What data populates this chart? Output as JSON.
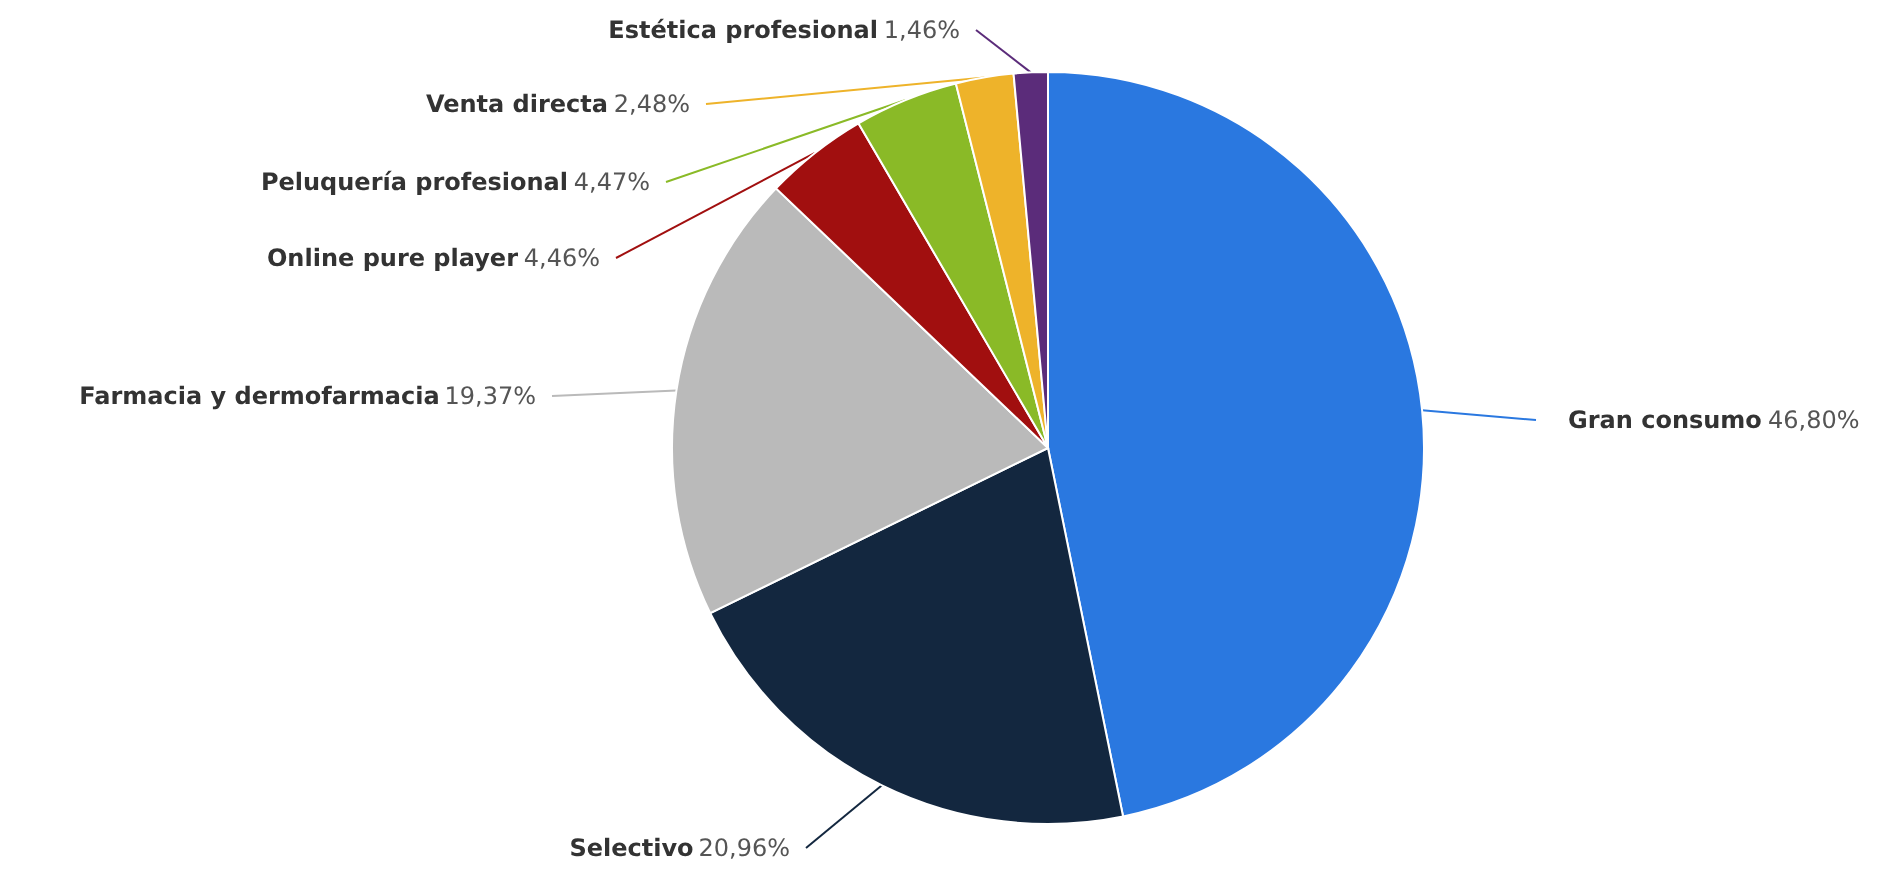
{
  "chart_data": {
    "type": "pie",
    "categories": [
      "Gran consumo",
      "Selectivo",
      "Farmacia y dermofarmacia",
      "Online pure player",
      "Peluquería profesional",
      "Venta directa",
      "Estética profesional"
    ],
    "values": [
      46.8,
      20.96,
      19.37,
      4.46,
      4.47,
      2.48,
      1.46
    ],
    "value_labels": [
      "46,80%",
      "20,96%",
      "19,37%",
      "4,46%",
      "4,47%",
      "2,48%",
      "1,46%"
    ],
    "colors": [
      "#2a78e0",
      "#13273f",
      "#bababa",
      "#a10f0f",
      "#8aba27",
      "#eeb32a",
      "#5b2c7a"
    ]
  }
}
